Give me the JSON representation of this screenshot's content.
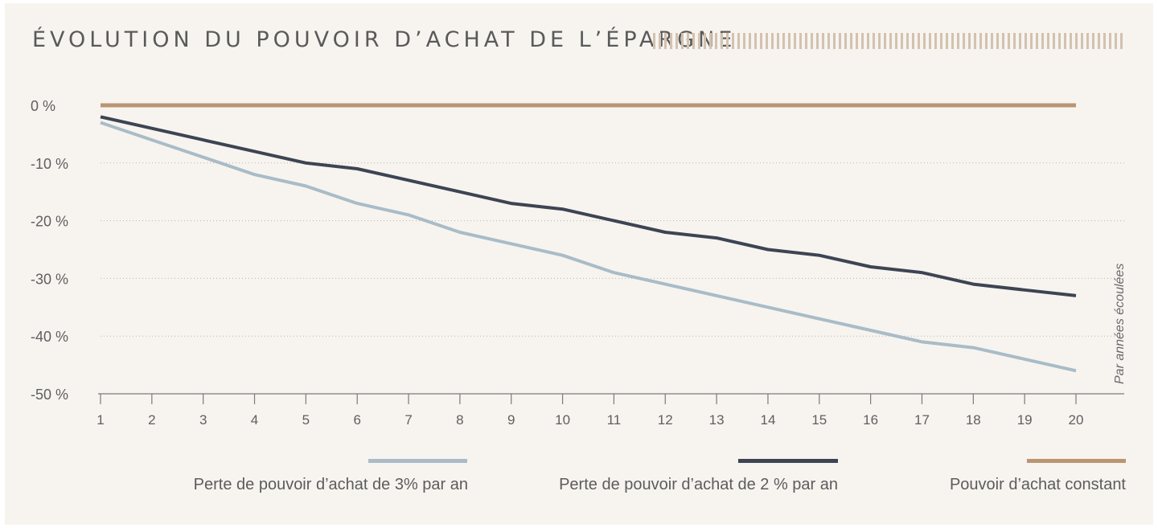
{
  "title": "ÉVOLUTION DU POUVOIR D’ACHAT DE L’ÉPARGNE",
  "chart_data": {
    "type": "line",
    "title": "ÉVOLUTION DU POUVOIR D’ACHAT DE L’ÉPARGNE",
    "xlabel": "Par années écoulées",
    "ylabel": "",
    "x": [
      1,
      2,
      3,
      4,
      5,
      6,
      7,
      8,
      9,
      10,
      11,
      12,
      13,
      14,
      15,
      16,
      17,
      18,
      19,
      20
    ],
    "x_tick_labels": [
      "1",
      "2",
      "3",
      "4",
      "5",
      "6",
      "7",
      "8",
      "9",
      "10",
      "11",
      "12",
      "13",
      "14",
      "15",
      "16",
      "17",
      "18",
      "19",
      "20"
    ],
    "y_tick_values": [
      0,
      -10,
      -20,
      -30,
      -40,
      -50
    ],
    "y_tick_labels": [
      "0 %",
      "-10 %",
      "-20 %",
      "-30 %",
      "-40 %",
      "-50 %"
    ],
    "ylim": [
      -50,
      0
    ],
    "xlim": [
      1,
      20
    ],
    "grid": "horizontal dotted",
    "legend_position": "bottom",
    "series": [
      {
        "name": "Perte de pouvoir d’achat de 3% par an",
        "color": "#a9bcc7",
        "values": [
          -3,
          -6,
          -9,
          -12,
          -14,
          -17,
          -19,
          -22,
          -24,
          -26,
          -29,
          -31,
          -33,
          -35,
          -37,
          -39,
          -41,
          -42,
          -44,
          -46
        ]
      },
      {
        "name": "Perte de pouvoir d’achat de 2 % par an",
        "color": "#3d4452",
        "values": [
          -2,
          -4,
          -6,
          -8,
          -10,
          -11,
          -13,
          -15,
          -17,
          -18,
          -20,
          -22,
          -23,
          -25,
          -26,
          -28,
          -29,
          -31,
          -32,
          -33
        ]
      },
      {
        "name": "Pouvoir d’achat constant",
        "color": "#b99673",
        "values": [
          0,
          0,
          0,
          0,
          0,
          0,
          0,
          0,
          0,
          0,
          0,
          0,
          0,
          0,
          0,
          0,
          0,
          0,
          0,
          0
        ]
      }
    ]
  }
}
